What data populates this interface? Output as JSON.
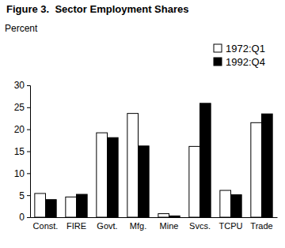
{
  "chart_data": {
    "type": "bar",
    "title": "Figure 3.  Sector Employment Shares",
    "y_label": "Percent",
    "categories": [
      "Const.",
      "FIRE",
      "Govt.",
      "Mfg.",
      "Mine",
      "Svcs.",
      "TCPU",
      "Trade"
    ],
    "series": [
      {
        "name": "1972:Q1",
        "color": "#ffffff",
        "values": [
          5.4,
          4.6,
          19.2,
          23.6,
          0.8,
          16.1,
          6.1,
          21.5
        ]
      },
      {
        "name": "1992:Q4",
        "color": "#000000",
        "values": [
          4.0,
          5.2,
          18.1,
          16.2,
          0.3,
          25.9,
          5.1,
          23.5
        ]
      }
    ],
    "ylim": [
      0,
      30
    ],
    "yticks": [
      0,
      5,
      10,
      15,
      20,
      25,
      30
    ],
    "grid": false,
    "legend": "upper right"
  }
}
